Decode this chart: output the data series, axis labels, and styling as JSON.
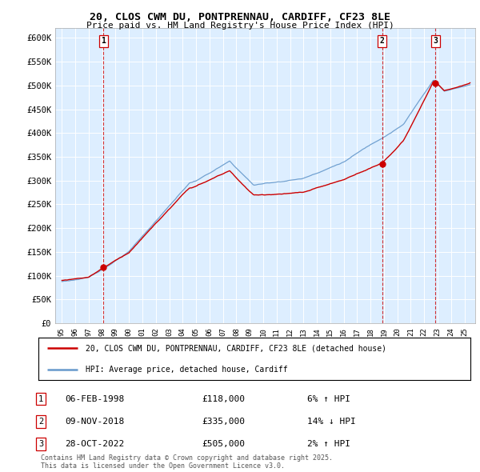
{
  "title": "20, CLOS CWM DU, PONTPRENNAU, CARDIFF, CF23 8LE",
  "subtitle": "Price paid vs. HM Land Registry's House Price Index (HPI)",
  "ylim": [
    0,
    620000
  ],
  "xlim_start": 1994.5,
  "xlim_end": 2025.8,
  "yticks": [
    0,
    50000,
    100000,
    150000,
    200000,
    250000,
    300000,
    350000,
    400000,
    450000,
    500000,
    550000,
    600000
  ],
  "ytick_labels": [
    "£0",
    "£50K",
    "£100K",
    "£150K",
    "£200K",
    "£250K",
    "£300K",
    "£350K",
    "£400K",
    "£450K",
    "£500K",
    "£550K",
    "£600K"
  ],
  "sale_dates": [
    1998.09,
    2018.86,
    2022.83
  ],
  "sale_prices": [
    118000,
    335000,
    505000
  ],
  "sale_labels": [
    "1",
    "2",
    "3"
  ],
  "hpi_color": "#6699cc",
  "price_color": "#cc0000",
  "plot_bg_color": "#ddeeff",
  "background_color": "#ffffff",
  "legend_entries": [
    "20, CLOS CWM DU, PONTPRENNAU, CARDIFF, CF23 8LE (detached house)",
    "HPI: Average price, detached house, Cardiff"
  ],
  "table_entries": [
    {
      "label": "1",
      "date": "06-FEB-1998",
      "price": "£118,000",
      "pct": "6% ↑ HPI"
    },
    {
      "label": "2",
      "date": "09-NOV-2018",
      "price": "£335,000",
      "pct": "14% ↓ HPI"
    },
    {
      "label": "3",
      "date": "28-OCT-2022",
      "price": "£505,000",
      "pct": "2% ↑ HPI"
    }
  ],
  "footer": "Contains HM Land Registry data © Crown copyright and database right 2025.\nThis data is licensed under the Open Government Licence v3.0."
}
